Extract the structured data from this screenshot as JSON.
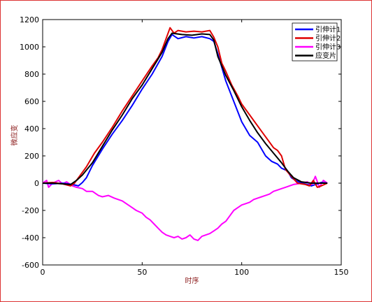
{
  "chart_data": {
    "type": "line",
    "title": "",
    "xlabel": "时序",
    "ylabel": "微应变",
    "xlim": [
      0,
      150
    ],
    "ylim": [
      -600,
      1200
    ],
    "x_ticks": [
      "0",
      "50",
      "100",
      "150"
    ],
    "y_ticks": [
      "-600",
      "-400",
      "-200",
      "0",
      "200",
      "400",
      "600",
      "800",
      "1000",
      "1200"
    ],
    "grid": false,
    "legend_position": "top-right",
    "series": [
      {
        "name": "引伸计1",
        "color": "#0000ff",
        "points": [
          [
            0,
            0
          ],
          [
            5,
            -5
          ],
          [
            10,
            0
          ],
          [
            15,
            -10
          ],
          [
            18,
            -20
          ],
          [
            20,
            5
          ],
          [
            22,
            40
          ],
          [
            25,
            130
          ],
          [
            30,
            250
          ],
          [
            35,
            360
          ],
          [
            40,
            460
          ],
          [
            45,
            570
          ],
          [
            50,
            690
          ],
          [
            55,
            800
          ],
          [
            60,
            930
          ],
          [
            63,
            1040
          ],
          [
            65,
            1090
          ],
          [
            68,
            1060
          ],
          [
            72,
            1075
          ],
          [
            76,
            1065
          ],
          [
            80,
            1075
          ],
          [
            84,
            1060
          ],
          [
            86,
            1040
          ],
          [
            88,
            950
          ],
          [
            92,
            750
          ],
          [
            96,
            600
          ],
          [
            100,
            450
          ],
          [
            104,
            350
          ],
          [
            108,
            300
          ],
          [
            110,
            250
          ],
          [
            112,
            200
          ],
          [
            115,
            160
          ],
          [
            118,
            140
          ],
          [
            120,
            110
          ],
          [
            123,
            90
          ],
          [
            125,
            40
          ],
          [
            127,
            20
          ],
          [
            130,
            0
          ],
          [
            133,
            -10
          ],
          [
            135,
            -20
          ],
          [
            140,
            5
          ],
          [
            143,
            0
          ]
        ]
      },
      {
        "name": "引伸计2",
        "color": "#e00000",
        "points": [
          [
            0,
            0
          ],
          [
            5,
            5
          ],
          [
            10,
            -5
          ],
          [
            14,
            -20
          ],
          [
            16,
            0
          ],
          [
            18,
            40
          ],
          [
            22,
            120
          ],
          [
            26,
            220
          ],
          [
            30,
            300
          ],
          [
            35,
            410
          ],
          [
            40,
            530
          ],
          [
            45,
            640
          ],
          [
            50,
            750
          ],
          [
            55,
            860
          ],
          [
            58,
            920
          ],
          [
            60,
            980
          ],
          [
            62,
            1060
          ],
          [
            64,
            1140
          ],
          [
            66,
            1100
          ],
          [
            68,
            1120
          ],
          [
            72,
            1110
          ],
          [
            76,
            1115
          ],
          [
            80,
            1110
          ],
          [
            84,
            1120
          ],
          [
            86,
            1070
          ],
          [
            88,
            1000
          ],
          [
            90,
            880
          ],
          [
            92,
            820
          ],
          [
            95,
            720
          ],
          [
            98,
            640
          ],
          [
            100,
            580
          ],
          [
            104,
            500
          ],
          [
            108,
            420
          ],
          [
            112,
            340
          ],
          [
            116,
            260
          ],
          [
            118,
            240
          ],
          [
            120,
            200
          ],
          [
            122,
            100
          ],
          [
            125,
            50
          ],
          [
            128,
            0
          ],
          [
            132,
            -10
          ],
          [
            134,
            -20
          ],
          [
            136,
            20
          ],
          [
            138,
            -30
          ],
          [
            140,
            -20
          ],
          [
            143,
            0
          ]
        ]
      },
      {
        "name": "引伸计3",
        "color": "#ff00ff",
        "points": [
          [
            0,
            0
          ],
          [
            2,
            20
          ],
          [
            3,
            -30
          ],
          [
            5,
            0
          ],
          [
            8,
            20
          ],
          [
            10,
            -5
          ],
          [
            12,
            10
          ],
          [
            15,
            -20
          ],
          [
            17,
            -30
          ],
          [
            20,
            -40
          ],
          [
            22,
            -60
          ],
          [
            25,
            -60
          ],
          [
            28,
            -90
          ],
          [
            30,
            -100
          ],
          [
            33,
            -90
          ],
          [
            36,
            -110
          ],
          [
            40,
            -130
          ],
          [
            43,
            -160
          ],
          [
            45,
            -180
          ],
          [
            47,
            -200
          ],
          [
            50,
            -220
          ],
          [
            52,
            -250
          ],
          [
            54,
            -270
          ],
          [
            56,
            -300
          ],
          [
            58,
            -330
          ],
          [
            60,
            -360
          ],
          [
            62,
            -380
          ],
          [
            64,
            -390
          ],
          [
            66,
            -400
          ],
          [
            68,
            -390
          ],
          [
            70,
            -410
          ],
          [
            72,
            -400
          ],
          [
            74,
            -380
          ],
          [
            76,
            -410
          ],
          [
            78,
            -420
          ],
          [
            80,
            -390
          ],
          [
            82,
            -380
          ],
          [
            84,
            -370
          ],
          [
            86,
            -350
          ],
          [
            88,
            -330
          ],
          [
            90,
            -300
          ],
          [
            92,
            -280
          ],
          [
            94,
            -240
          ],
          [
            96,
            -200
          ],
          [
            98,
            -180
          ],
          [
            100,
            -160
          ],
          [
            102,
            -150
          ],
          [
            104,
            -140
          ],
          [
            106,
            -120
          ],
          [
            108,
            -110
          ],
          [
            110,
            -100
          ],
          [
            112,
            -90
          ],
          [
            114,
            -80
          ],
          [
            116,
            -60
          ],
          [
            118,
            -50
          ],
          [
            120,
            -40
          ],
          [
            122,
            -30
          ],
          [
            124,
            -20
          ],
          [
            126,
            -10
          ],
          [
            128,
            -5
          ],
          [
            130,
            0
          ],
          [
            133,
            10
          ],
          [
            135,
            -20
          ],
          [
            137,
            50
          ],
          [
            139,
            -30
          ],
          [
            141,
            20
          ],
          [
            143,
            0
          ]
        ]
      },
      {
        "name": "应变片",
        "color": "#000000",
        "points": [
          [
            0,
            0
          ],
          [
            5,
            0
          ],
          [
            10,
            -5
          ],
          [
            14,
            -10
          ],
          [
            17,
            20
          ],
          [
            20,
            60
          ],
          [
            25,
            150
          ],
          [
            30,
            270
          ],
          [
            35,
            390
          ],
          [
            40,
            500
          ],
          [
            45,
            620
          ],
          [
            50,
            720
          ],
          [
            55,
            840
          ],
          [
            60,
            960
          ],
          [
            63,
            1060
          ],
          [
            65,
            1100
          ],
          [
            70,
            1090
          ],
          [
            75,
            1085
          ],
          [
            80,
            1095
          ],
          [
            84,
            1090
          ],
          [
            86,
            1050
          ],
          [
            88,
            930
          ],
          [
            92,
            790
          ],
          [
            96,
            680
          ],
          [
            100,
            560
          ],
          [
            104,
            460
          ],
          [
            108,
            370
          ],
          [
            112,
            290
          ],
          [
            116,
            220
          ],
          [
            120,
            150
          ],
          [
            123,
            90
          ],
          [
            126,
            40
          ],
          [
            130,
            10
          ],
          [
            135,
            0
          ],
          [
            140,
            0
          ],
          [
            143,
            0
          ]
        ]
      }
    ]
  }
}
